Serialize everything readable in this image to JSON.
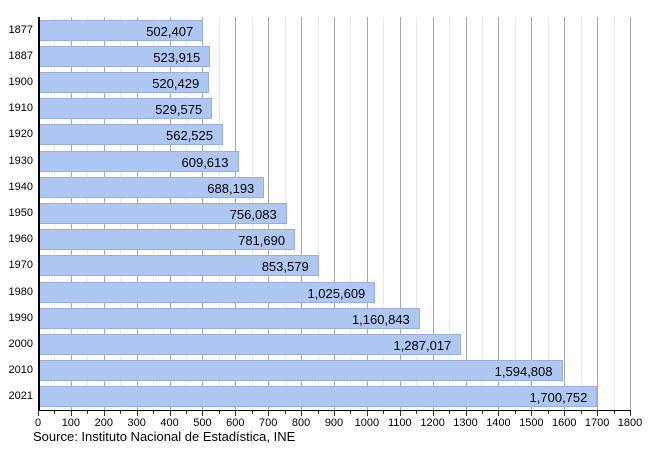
{
  "chart_data": {
    "type": "bar",
    "orientation": "horizontal",
    "title": "",
    "xlabel": "",
    "ylabel": "",
    "categories": [
      "1877",
      "1887",
      "1900",
      "1910",
      "1920",
      "1930",
      "1940",
      "1950",
      "1960",
      "1970",
      "1980",
      "1990",
      "2000",
      "2010",
      "2021"
    ],
    "values": [
      502407,
      523915,
      520429,
      529575,
      562525,
      609613,
      688193,
      756083,
      781690,
      853579,
      1025609,
      1160843,
      1287017,
      1594808,
      1700752
    ],
    "value_labels": [
      "502,407",
      "523,915",
      "520,429",
      "529,575",
      "562,525",
      "609,613",
      "688,193",
      "756,083",
      "781,690",
      "853,579",
      "1,025,609",
      "1,160,843",
      "1,287,017",
      "1,594,808",
      "1,700,752"
    ],
    "xlim": [
      0,
      1800
    ],
    "x_tick_step": 100,
    "x_minor_tick_step": 50,
    "x_unit_divisor": 1000,
    "x_tick_labels": [
      "0",
      "100",
      "200",
      "300",
      "400",
      "500",
      "600",
      "700",
      "800",
      "900",
      "1000",
      "1100",
      "1200",
      "1300",
      "1400",
      "1500",
      "1600",
      "1700",
      "1800"
    ],
    "grid": true,
    "legend_position": "none"
  },
  "colors": {
    "bar_fill": "#aec8f3",
    "bar_border": "#96aee0",
    "grid_major": "#a8a8a8",
    "grid_minor": "#e9e9e9",
    "axis": "#000000",
    "tick": "#333333",
    "background": "#ffffff"
  },
  "footer": {
    "source_note": "Source: Instituto Nacional de Estadística, INE"
  }
}
